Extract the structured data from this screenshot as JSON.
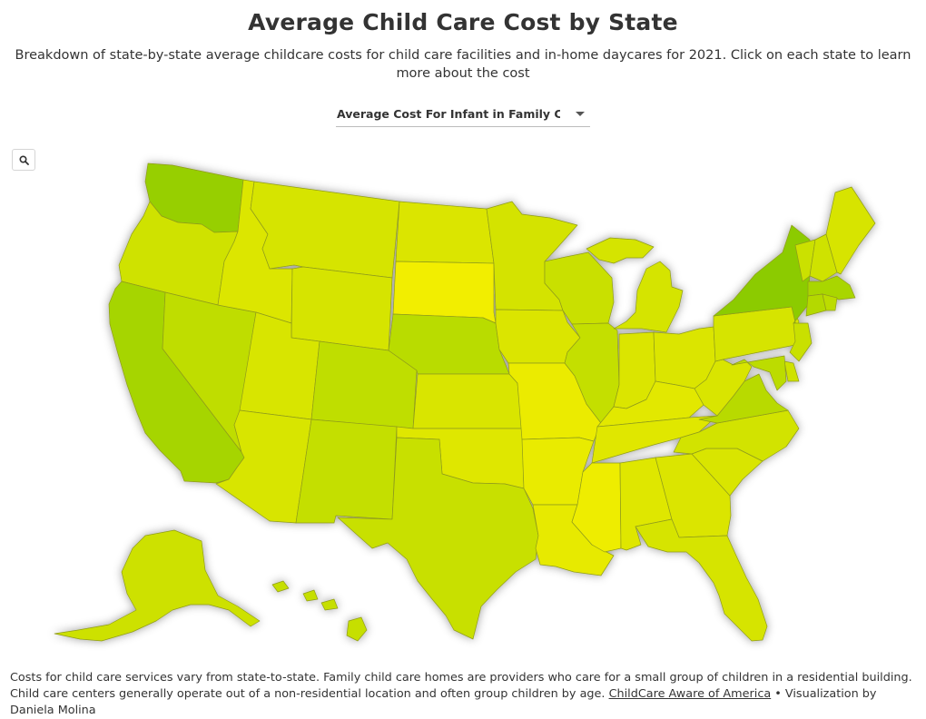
{
  "header": {
    "title": "Average Child Care Cost by State",
    "subtitle": "Breakdown of state-by-state average childcare costs for child care facilities and in-home daycares for 2021. Click on each state to learn more about the cost"
  },
  "dropdown": {
    "selected": "Average Cost For Infant in Family Child Care"
  },
  "zoom": {
    "icon": "search-icon"
  },
  "footer": {
    "text": "Costs for child care services vary from state-to-state. Family child care homes are providers who care for a small group of children in a residential building. Child care centers generally operate out of a non-residential location and often group children by age.",
    "source_link": "ChildCare Aware of America",
    "credit": "• Visualization by Daniela Molina"
  },
  "map": {
    "type": "choropleth",
    "region": "United States",
    "color_scale": [
      "#f2ee00",
      "#dbe500",
      "#c4df00",
      "#a4d400",
      "#8ccb00"
    ],
    "states": [
      {
        "name": "Washington",
        "color": "#97cf00"
      },
      {
        "name": "Oregon",
        "color": "#cfe200"
      },
      {
        "name": "California",
        "color": "#a6d500"
      },
      {
        "name": "Nevada",
        "color": "#bfdd00"
      },
      {
        "name": "Idaho",
        "color": "#dce600"
      },
      {
        "name": "Montana",
        "color": "#d6e400"
      },
      {
        "name": "Wyoming",
        "color": "#d6e400"
      },
      {
        "name": "Utah",
        "color": "#d8e500"
      },
      {
        "name": "Arizona",
        "color": "#d8e500"
      },
      {
        "name": "Colorado",
        "color": "#bfde00"
      },
      {
        "name": "New Mexico",
        "color": "#c4df00"
      },
      {
        "name": "North Dakota",
        "color": "#dbe500"
      },
      {
        "name": "South Dakota",
        "color": "#f2ee00"
      },
      {
        "name": "Nebraska",
        "color": "#b9dc00"
      },
      {
        "name": "Kansas",
        "color": "#d9e500"
      },
      {
        "name": "Oklahoma",
        "color": "#dfe700"
      },
      {
        "name": "Texas",
        "color": "#c8e000"
      },
      {
        "name": "Minnesota",
        "color": "#d4e300"
      },
      {
        "name": "Iowa",
        "color": "#dbe500"
      },
      {
        "name": "Missouri",
        "color": "#ebeb00"
      },
      {
        "name": "Arkansas",
        "color": "#e9eb00"
      },
      {
        "name": "Louisiana",
        "color": "#e7ea00"
      },
      {
        "name": "Wisconsin",
        "color": "#c9e000"
      },
      {
        "name": "Illinois",
        "color": "#c4df00"
      },
      {
        "name": "Michigan",
        "color": "#d5e400"
      },
      {
        "name": "Indiana",
        "color": "#dbe500"
      },
      {
        "name": "Ohio",
        "color": "#dbe500"
      },
      {
        "name": "Kentucky",
        "color": "#e2e800"
      },
      {
        "name": "Tennessee",
        "color": "#e0e700"
      },
      {
        "name": "Mississippi",
        "color": "#eeed00"
      },
      {
        "name": "Alabama",
        "color": "#dfe700"
      },
      {
        "name": "Georgia",
        "color": "#dbe500"
      },
      {
        "name": "Florida",
        "color": "#d6e400"
      },
      {
        "name": "South Carolina",
        "color": "#d9e500"
      },
      {
        "name": "North Carolina",
        "color": "#d2e300"
      },
      {
        "name": "Virginia",
        "color": "#b8da00"
      },
      {
        "name": "West Virginia",
        "color": "#d9e500"
      },
      {
        "name": "Pennsylvania",
        "color": "#d6e400"
      },
      {
        "name": "New York",
        "color": "#8ccb00"
      },
      {
        "name": "Vermont",
        "color": "#cbe100"
      },
      {
        "name": "New Hampshire",
        "color": "#cfe200"
      },
      {
        "name": "Maine",
        "color": "#d7e400"
      },
      {
        "name": "Massachusetts",
        "color": "#a9d600"
      },
      {
        "name": "Connecticut",
        "color": "#b4d900"
      },
      {
        "name": "Rhode Island",
        "color": "#bcdc00"
      },
      {
        "name": "New Jersey",
        "color": "#c9e000"
      },
      {
        "name": "Delaware",
        "color": "#cfe200"
      },
      {
        "name": "Maryland",
        "color": "#bcdc00"
      },
      {
        "name": "Alaska",
        "color": "#cde100"
      },
      {
        "name": "Hawaii",
        "color": "#c6df00"
      }
    ]
  }
}
